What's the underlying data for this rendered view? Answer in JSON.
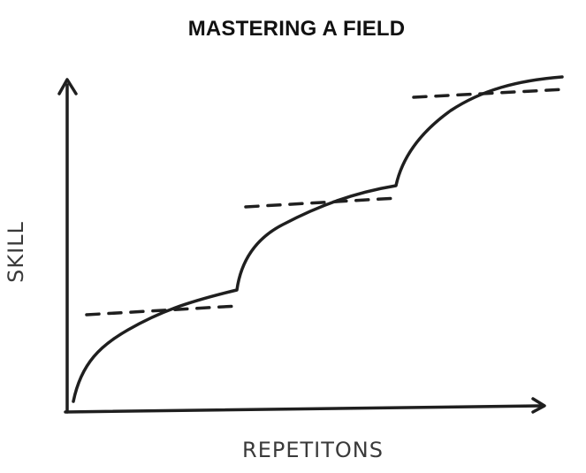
{
  "diagram": {
    "title": "MASTERING A FIELD",
    "x_axis_label": "REPETITONS",
    "y_axis_label": "SKILL"
  }
}
